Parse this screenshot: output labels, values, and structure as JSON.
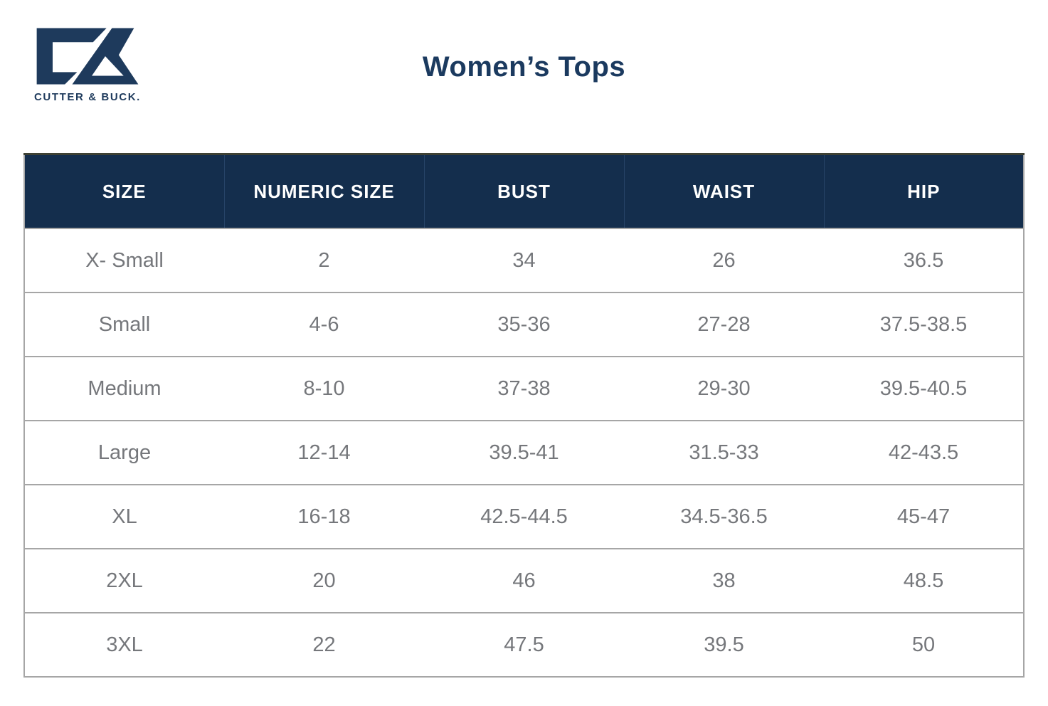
{
  "brand": {
    "name": "CUTTER & BUCK.",
    "logo": "cutter-buck-monogram"
  },
  "page": {
    "title": "Women’s Tops"
  },
  "colors": {
    "header_bg_navy": "#142e4d",
    "brand_navy": "#1e3a5c",
    "title_navy": "#1b3a5f",
    "header_text": "#ffffff",
    "cell_text": "#75777b",
    "rule_gray": "#a6a6a6"
  },
  "chart_data": {
    "type": "table",
    "title": "Women’s Tops",
    "columns": [
      "SIZE",
      "NUMERIC SIZE",
      "BUST",
      "WAIST",
      "HIP"
    ],
    "rows": [
      [
        "X- Small",
        "2",
        "34",
        "26",
        "36.5"
      ],
      [
        "Small",
        "4-6",
        "35-36",
        "27-28",
        "37.5-38.5"
      ],
      [
        "Medium",
        "8-10",
        "37-38",
        "29-30",
        "39.5-40.5"
      ],
      [
        "Large",
        "12-14",
        "39.5-41",
        "31.5-33",
        "42-43.5"
      ],
      [
        "XL",
        "16-18",
        "42.5-44.5",
        "34.5-36.5",
        "45-47"
      ],
      [
        "2XL",
        "20",
        "46",
        "38",
        "48.5"
      ],
      [
        "3XL",
        "22",
        "47.5",
        "39.5",
        "50"
      ]
    ]
  },
  "table": {
    "columns": [
      "SIZE",
      "NUMERIC SIZE",
      "BUST",
      "WAIST",
      "HIP"
    ],
    "rows": [
      [
        "X- Small",
        "2",
        "34",
        "26",
        "36.5"
      ],
      [
        "Small",
        "4-6",
        "35-36",
        "27-28",
        "37.5-38.5"
      ],
      [
        "Medium",
        "8-10",
        "37-38",
        "29-30",
        "39.5-40.5"
      ],
      [
        "Large",
        "12-14",
        "39.5-41",
        "31.5-33",
        "42-43.5"
      ],
      [
        "XL",
        "16-18",
        "42.5-44.5",
        "34.5-36.5",
        "45-47"
      ],
      [
        "2XL",
        "20",
        "46",
        "38",
        "48.5"
      ],
      [
        "3XL",
        "22",
        "47.5",
        "39.5",
        "50"
      ]
    ]
  }
}
